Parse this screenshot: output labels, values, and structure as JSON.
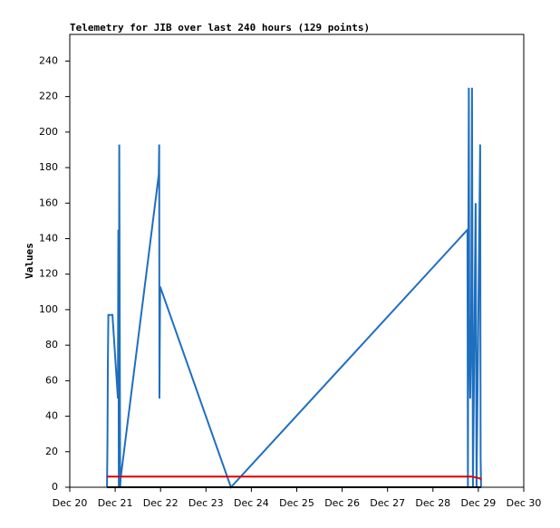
{
  "chart_data": {
    "type": "line",
    "title": "Telemetry for JIB over last 240 hours (129 points)",
    "y_label": "Values",
    "xlim": [
      20,
      30
    ],
    "xticks": [
      {
        "value": 20,
        "label": "Dec 20"
      },
      {
        "value": 21,
        "label": "Dec 21"
      },
      {
        "value": 22,
        "label": "Dec 22"
      },
      {
        "value": 23,
        "label": "Dec 23"
      },
      {
        "value": 24,
        "label": "Dec 24"
      },
      {
        "value": 25,
        "label": "Dec 25"
      },
      {
        "value": 26,
        "label": "Dec 26"
      },
      {
        "value": 27,
        "label": "Dec 27"
      },
      {
        "value": 28,
        "label": "Dec 28"
      },
      {
        "value": 29,
        "label": "Dec 29"
      },
      {
        "value": 30,
        "label": "Dec 30"
      }
    ],
    "ylim": [
      0,
      255
    ],
    "yticks": [
      0,
      20,
      40,
      60,
      80,
      100,
      120,
      140,
      160,
      180,
      200,
      220,
      240
    ],
    "grid": false,
    "series": [
      {
        "name": "blue",
        "color": "#1f6fbf",
        "x": [
          20.82,
          20.83,
          20.84,
          20.85,
          20.87,
          20.94,
          21.06,
          21.07,
          21.08,
          21.09,
          21.11,
          21.12,
          21.96,
          21.97,
          21.975,
          21.99,
          23.55,
          28.76,
          28.77,
          28.78,
          28.79,
          28.8,
          28.82,
          28.84,
          28.86,
          28.88,
          28.94,
          28.96,
          29.04,
          29.05,
          29.06
        ],
        "values": [
          0,
          25,
          72,
          97,
          97,
          97,
          50,
          145,
          0,
          193,
          0,
          5,
          176,
          193,
          50,
          113,
          0,
          145,
          0,
          137,
          225,
          97,
          50,
          80,
          225,
          0,
          160,
          0,
          193,
          17,
          0
        ]
      },
      {
        "name": "red",
        "color": "#e00000",
        "x": [
          20.82,
          28.86,
          29.04,
          29.06
        ],
        "values": [
          6,
          6,
          5,
          4
        ]
      },
      {
        "name": "black",
        "color": "#000000",
        "x": [
          20.82,
          29.06
        ],
        "values": [
          0,
          0
        ]
      }
    ]
  }
}
